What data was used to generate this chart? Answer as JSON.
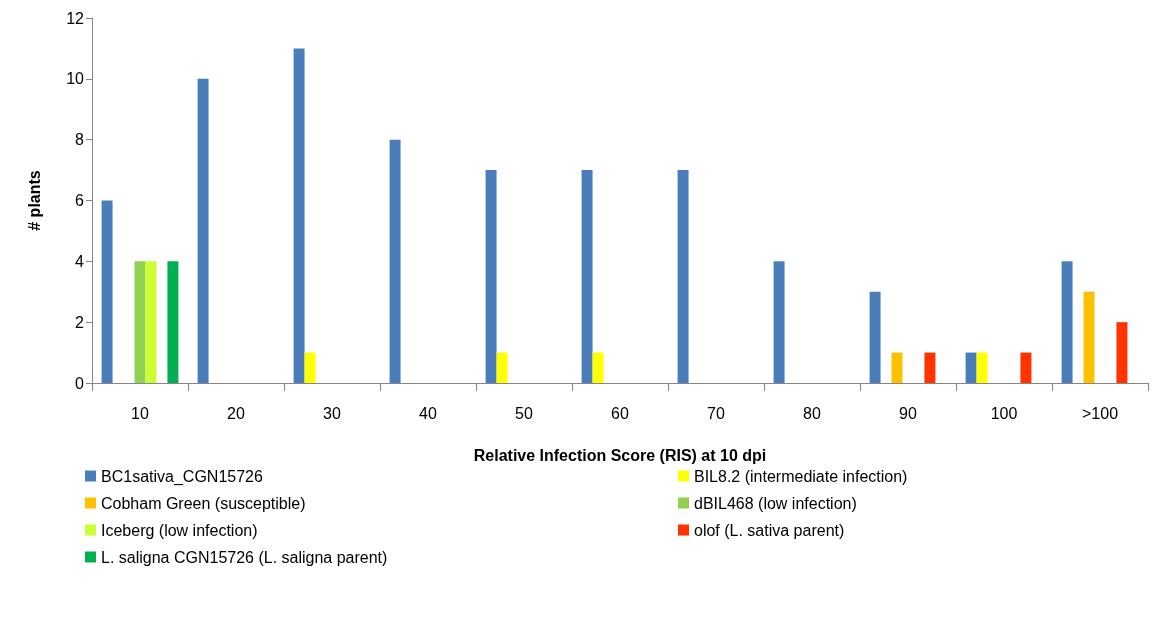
{
  "chart_data": {
    "type": "bar",
    "xlabel": "Relative Infection Score (RIS) at 10 dpi",
    "ylabel": "# plants",
    "categories": [
      "10",
      "20",
      "30",
      "40",
      "50",
      "60",
      "70",
      "80",
      "90",
      "100",
      ">100"
    ],
    "series": [
      {
        "name": "BC1sativa_CGN15726",
        "color": "#4a7ebb",
        "values": [
          6,
          10,
          11,
          8,
          7,
          7,
          7,
          4,
          3,
          1,
          4
        ]
      },
      {
        "name": "BIL8.2 (intermediate infection)",
        "color": "#ffff00",
        "values": [
          0,
          0,
          1,
          0,
          1,
          1,
          0,
          0,
          0,
          1,
          0
        ]
      },
      {
        "name": "Cobham Green (susceptible)",
        "color": "#ffc000",
        "values": [
          0,
          0,
          0,
          0,
          0,
          0,
          0,
          0,
          1,
          0,
          3
        ]
      },
      {
        "name": "dBIL468 (low infection)",
        "color": "#92d050",
        "values": [
          4,
          0,
          0,
          0,
          0,
          0,
          0,
          0,
          0,
          0,
          0
        ]
      },
      {
        "name": "Iceberg (low infection)",
        "color": "#ccff33",
        "values": [
          4,
          0,
          0,
          0,
          0,
          0,
          0,
          0,
          0,
          0,
          0
        ]
      },
      {
        "name": "olof (L. sativa parent)",
        "color": "#ff3300",
        "values": [
          0,
          0,
          0,
          0,
          0,
          0,
          0,
          0,
          1,
          1,
          2
        ]
      },
      {
        "name": "L. saligna CGN15726 (L. saligna parent)",
        "color": "#00b050",
        "values": [
          4,
          0,
          0,
          0,
          0,
          0,
          0,
          0,
          0,
          0,
          0
        ]
      }
    ],
    "ylim": [
      0,
      12
    ],
    "yticks": [
      0,
      2,
      4,
      6,
      8,
      10,
      12
    ],
    "grid": false,
    "legend": "bottom"
  }
}
